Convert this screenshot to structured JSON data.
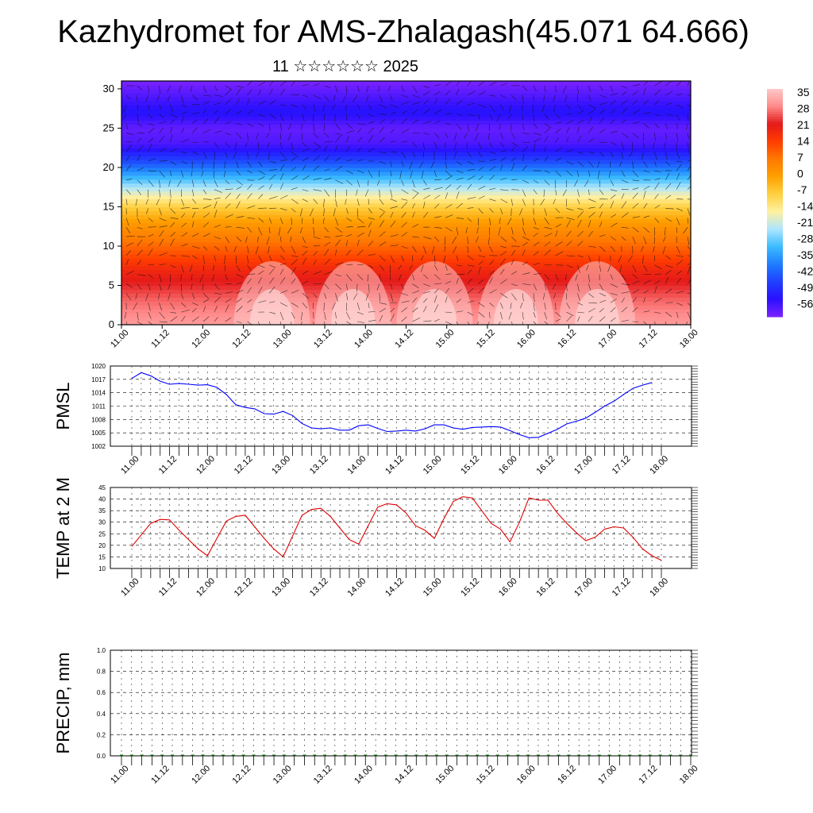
{
  "title": "Kazhydromet for AMS-Zhalagash(45.071 64.666)",
  "subtitle": "11 ☆☆☆☆☆☆ 2025",
  "time_ticks": [
    "11.00",
    "11.12",
    "12.00",
    "12.12",
    "13.00",
    "13.12",
    "14.00",
    "14.12",
    "15.00",
    "15.12",
    "16.00",
    "16.12",
    "17.00",
    "17.12",
    "18.00"
  ],
  "colorbar": {
    "labels": [
      "35",
      "28",
      "21",
      "14",
      "7",
      "0",
      "-7",
      "-14",
      "-21",
      "-28",
      "-35",
      "-42",
      "-49",
      "-56"
    ],
    "colors": [
      "#ffc8c8",
      "#ff8a8a",
      "#e41a1a",
      "#ff3c00",
      "#ff7800",
      "#ffa000",
      "#ffd040",
      "#fff0a0",
      "#aee6ff",
      "#3cbcff",
      "#1e7dff",
      "#2040ff",
      "#2a10ff",
      "#7b22ff"
    ]
  },
  "chart_data": [
    {
      "type": "heatmap",
      "name": "cross-section",
      "title": "",
      "xlabel": "",
      "ylabel": "",
      "x_ticks": [
        "11.00",
        "11.12",
        "12.00",
        "12.12",
        "13.00",
        "13.12",
        "14.00",
        "14.12",
        "15.00",
        "15.12",
        "16.00",
        "16.12",
        "17.00",
        "17.12",
        "18.00"
      ],
      "y_ticks": [
        0,
        5,
        10,
        15,
        20,
        25,
        30
      ],
      "ylim": [
        0,
        31
      ],
      "colorbar_range": [
        -56,
        35
      ],
      "overlay": "wind vectors",
      "level_profile": [
        {
          "level": 0,
          "value": 30
        },
        {
          "level": 3,
          "value": 26
        },
        {
          "level": 7,
          "value": 18
        },
        {
          "level": 10,
          "value": 9
        },
        {
          "level": 13,
          "value": 1
        },
        {
          "level": 15,
          "value": -7
        },
        {
          "level": 17,
          "value": -18
        },
        {
          "level": 19,
          "value": -30
        },
        {
          "level": 21,
          "value": -42
        },
        {
          "level": 23,
          "value": -52
        },
        {
          "level": 25,
          "value": -54
        },
        {
          "level": 27,
          "value": -48
        },
        {
          "level": 31,
          "value": -56
        }
      ]
    },
    {
      "type": "line",
      "ylabel": "PMSL",
      "ylim": [
        1002,
        1020
      ],
      "y_ticks": [
        "1002",
        "1005",
        "1008",
        "1011",
        "1014",
        "1017",
        "1020"
      ],
      "x_ticks": [
        "11.00",
        "11.12",
        "12.00",
        "12.12",
        "13.00",
        "13.12",
        "14.00",
        "14.12",
        "15.00",
        "15.12",
        "16.00",
        "16.12",
        "17.00",
        "17.12",
        "18.00"
      ],
      "series": [
        {
          "color": "#0000ff",
          "values": [
            1017.2,
            1018.5,
            1017.8,
            1016.6,
            1015.9,
            1016.1,
            1015.9,
            1015.7,
            1015.8,
            1015.2,
            1013.6,
            1011.3,
            1010.7,
            1010.4,
            1009.3,
            1009.2,
            1009.8,
            1008.9,
            1007.1,
            1006.1,
            1005.9,
            1006.1,
            1005.6,
            1005.6,
            1006.6,
            1006.8,
            1006.0,
            1005.3,
            1005.4,
            1005.6,
            1005.4,
            1005.9,
            1006.8,
            1006.8,
            1006.1,
            1005.8,
            1006.2,
            1006.3,
            1006.4,
            1006.3,
            1005.5,
            1004.6,
            1003.9,
            1004.0,
            1004.9,
            1005.8,
            1007.0,
            1007.6,
            1008.3,
            1009.6,
            1011.0,
            1012.1,
            1013.6,
            1015.0,
            1015.7,
            1016.3
          ]
        }
      ]
    },
    {
      "type": "line",
      "ylabel": "TEMP at 2 M",
      "ylim": [
        10,
        45
      ],
      "y_ticks": [
        "10",
        "15",
        "20",
        "25",
        "30",
        "35",
        "40",
        "45"
      ],
      "x_ticks": [
        "11.00",
        "11.12",
        "12.00",
        "12.12",
        "13.00",
        "13.12",
        "14.00",
        "14.12",
        "15.00",
        "15.12",
        "16.00",
        "16.12",
        "17.00",
        "17.12",
        "18.00"
      ],
      "series": [
        {
          "color": "#e00000",
          "values": [
            19.5,
            24.5,
            29.5,
            31.2,
            31.0,
            26.5,
            22.5,
            18.5,
            15.5,
            23.0,
            30.5,
            32.5,
            33.0,
            28.0,
            23.0,
            18.5,
            15.0,
            24.0,
            33.0,
            35.5,
            36.0,
            32.5,
            27.5,
            22.5,
            20.5,
            28.5,
            36.5,
            38.0,
            37.5,
            34.0,
            28.5,
            26.5,
            23.0,
            31.5,
            39.0,
            41.0,
            40.5,
            35.0,
            29.5,
            27.0,
            21.5,
            30.0,
            40.5,
            39.5,
            39.5,
            34.0,
            29.5,
            25.5,
            22.0,
            23.5,
            27.0,
            28.0,
            27.5,
            23.5,
            18.5,
            15.5,
            13.5
          ]
        }
      ]
    },
    {
      "type": "bar",
      "ylabel": "PRECIP, mm",
      "ylim": [
        0,
        1
      ],
      "y_ticks": [
        "0.0",
        "0.2",
        "0.4",
        "0.6",
        "0.8",
        "1.0"
      ],
      "x_ticks": [
        "11.00",
        "11.12",
        "12.00",
        "12.12",
        "13.00",
        "13.12",
        "14.00",
        "14.12",
        "15.00",
        "15.12",
        "16.00",
        "16.12",
        "17.00",
        "17.12",
        "18.00"
      ],
      "series": [
        {
          "color": "#006400",
          "values": [
            0,
            0,
            0,
            0,
            0,
            0,
            0,
            0,
            0,
            0,
            0,
            0,
            0,
            0,
            0,
            0,
            0,
            0,
            0,
            0,
            0,
            0,
            0,
            0,
            0,
            0,
            0,
            0,
            0,
            0,
            0,
            0,
            0,
            0,
            0,
            0,
            0,
            0,
            0,
            0,
            0,
            0,
            0,
            0,
            0,
            0,
            0,
            0,
            0,
            0,
            0,
            0,
            0,
            0,
            0,
            0,
            0
          ]
        }
      ]
    }
  ]
}
